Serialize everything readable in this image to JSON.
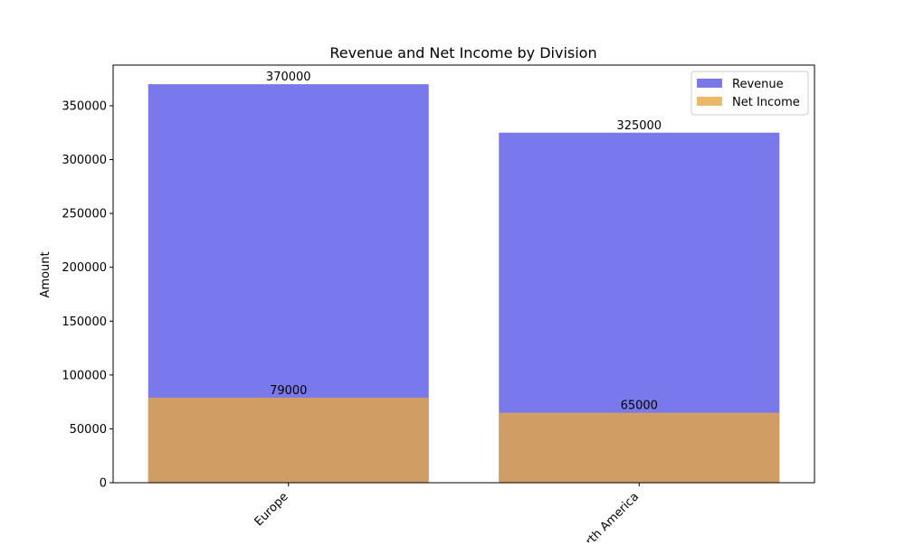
{
  "chart_data": {
    "type": "bar",
    "title": "Revenue and Net Income by Division",
    "xlabel": "",
    "ylabel": "Amount",
    "categories": [
      "Europe",
      "North America"
    ],
    "series": [
      {
        "name": "Revenue",
        "values": [
          370000,
          325000
        ],
        "color": "#5757e6"
      },
      {
        "name": "Net Income",
        "values": [
          79000,
          65000
        ],
        "color": "#e6a844"
      }
    ],
    "overlay": true,
    "ylim": [
      0,
      387750
    ],
    "yticks": [
      0,
      50000,
      100000,
      150000,
      200000,
      250000,
      300000,
      350000
    ],
    "grid": false,
    "legend_position": "top-right",
    "xtick_rotation": 45
  }
}
